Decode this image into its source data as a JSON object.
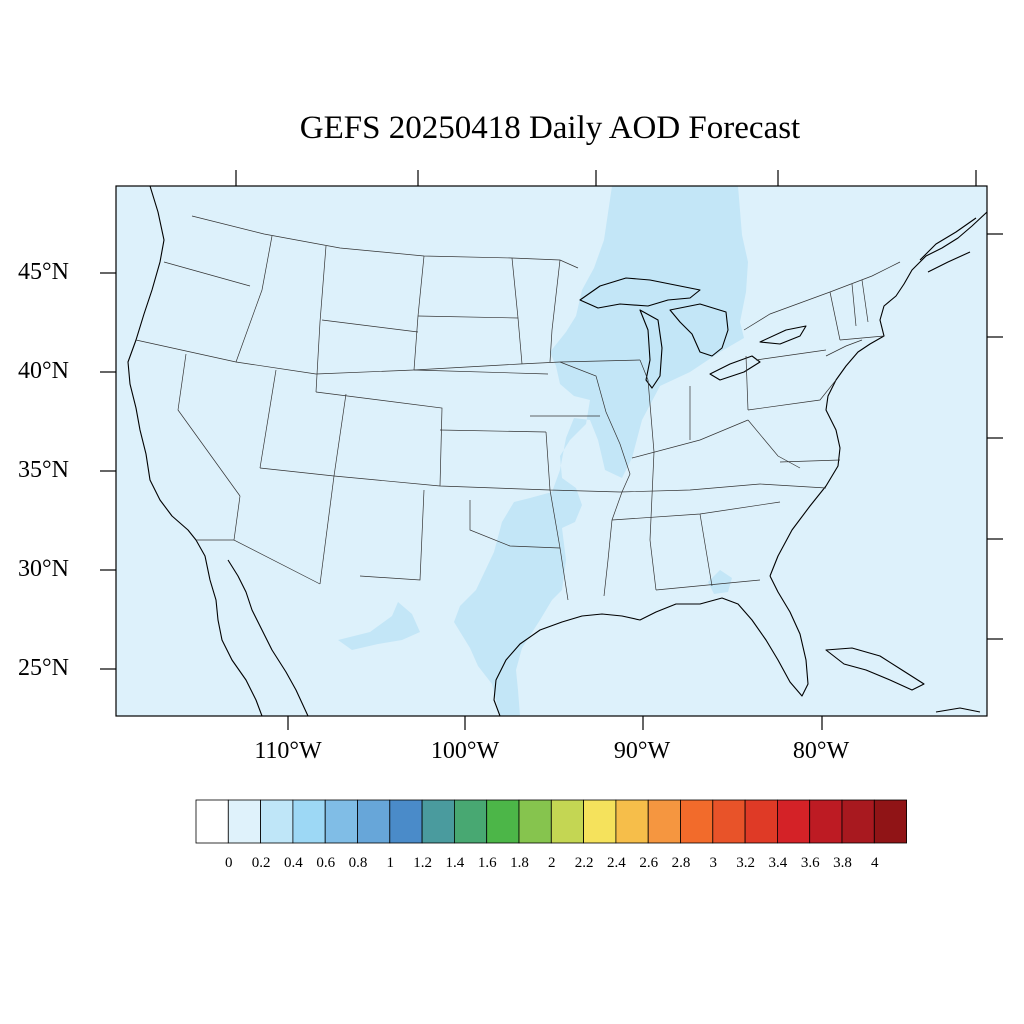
{
  "title": "GEFS 20250418 Daily AOD Forecast",
  "map": {
    "projection": "lambert-conformal",
    "region": "CONUS",
    "background_color": "#ddf1fb",
    "plume_color": "#c3e6f7",
    "border_color": "#000000",
    "lat_labels": [
      {
        "value": 45,
        "text": "45°N"
      },
      {
        "value": 40,
        "text": "40°N"
      },
      {
        "value": 35,
        "text": "35°N"
      },
      {
        "value": 30,
        "text": "30°N"
      },
      {
        "value": 25,
        "text": "25°N"
      }
    ],
    "lon_labels": [
      {
        "value": -110,
        "text": "110°W"
      },
      {
        "value": -100,
        "text": "100°W"
      },
      {
        "value": -90,
        "text": "90°W"
      },
      {
        "value": -80,
        "text": "80°W"
      }
    ],
    "aod_field": "0–0.2 nearly everywhere; 0.2–0.4 plume from the upper Great Lakes south through the Mississippi valley to south Texas"
  },
  "colorbar": {
    "labels": [
      "0",
      "0.2",
      "0.4",
      "0.6",
      "0.8",
      "1",
      "1.2",
      "1.4",
      "1.6",
      "1.8",
      "2",
      "2.2",
      "2.4",
      "2.6",
      "2.8",
      "3",
      "3.2",
      "3.4",
      "3.6",
      "3.8",
      "4"
    ],
    "colors": [
      "#ffffff",
      "#dff2fb",
      "#bfe6f8",
      "#9dd8f5",
      "#80bde6",
      "#67a6d9",
      "#4a8bc9",
      "#4a9b9e",
      "#48a872",
      "#4cb648",
      "#86c44e",
      "#c4d653",
      "#f5e25c",
      "#f6be4a",
      "#f59640",
      "#f26b2b",
      "#e85329",
      "#df3a26",
      "#d42227",
      "#bd1b23",
      "#a8191f",
      "#901416"
    ]
  }
}
